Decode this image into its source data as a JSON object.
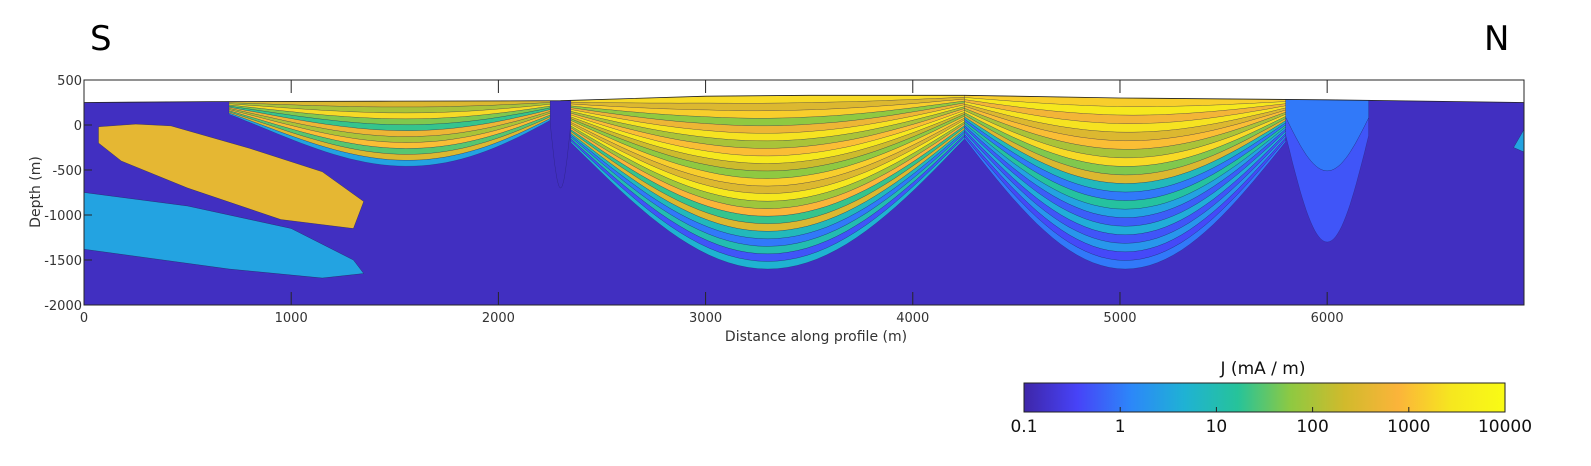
{
  "chart_data": {
    "type": "heatmap",
    "direction_labels": {
      "left": "S",
      "right": "N"
    },
    "xlabel": "Distance along profile (m)",
    "ylabel": "Depth (m)",
    "xlim": [
      0,
      6950
    ],
    "ylim": [
      -2000,
      500
    ],
    "x_ticks": [
      0,
      1000,
      2000,
      3000,
      4000,
      5000,
      6000
    ],
    "x_tick_labels": [
      "0",
      "1000",
      "2000",
      "3000",
      "4000",
      "5000",
      "6000"
    ],
    "y_ticks": [
      500,
      0,
      -500,
      -1000,
      -1500,
      -2000
    ],
    "y_tick_labels": [
      "500",
      "0",
      "-500",
      "-1000",
      "-1500",
      "-2000"
    ],
    "colorbar": {
      "title": "J (mA / m)",
      "scale": "log",
      "range": [
        0.1,
        10000
      ],
      "ticks": [
        0.1,
        1,
        10,
        100,
        1000,
        10000
      ],
      "tick_labels": [
        "0.1",
        "1",
        "10",
        "100",
        "1000",
        "10000"
      ],
      "colormap": [
        "#3e26a8",
        "#4743f8",
        "#2c87f9",
        "#1fb2d4",
        "#26c39a",
        "#8fc941",
        "#d1ba2c",
        "#fbb43a",
        "#f6e71f",
        "#f9fb15"
      ]
    },
    "surface_elevation": [
      [
        0,
        250
      ],
      [
        600,
        260
      ],
      [
        1500,
        265
      ],
      [
        2300,
        270
      ],
      [
        3000,
        320
      ],
      [
        3500,
        330
      ],
      [
        4250,
        330
      ],
      [
        5000,
        300
      ],
      [
        6000,
        280
      ],
      [
        6950,
        250
      ]
    ],
    "background_value": 0.15,
    "bodies": [
      {
        "name": "",
        "value": 400,
        "outline": [
          [
            70,
            -20
          ],
          [
            250,
            10
          ],
          [
            420,
            -10
          ],
          [
            800,
            -260
          ],
          [
            1150,
            -520
          ],
          [
            1350,
            -850
          ],
          [
            1300,
            -1150
          ],
          [
            950,
            -1050
          ],
          [
            500,
            -700
          ],
          [
            180,
            -400
          ],
          [
            70,
            -200
          ]
        ]
      },
      {
        "name": "",
        "value": 3,
        "outline": [
          [
            0,
            -750
          ],
          [
            500,
            -900
          ],
          [
            1000,
            -1150
          ],
          [
            1300,
            -1500
          ],
          [
            1350,
            -1650
          ],
          [
            1150,
            -1700
          ],
          [
            700,
            -1600
          ],
          [
            0,
            -1380
          ]
        ]
      },
      {
        "name": "",
        "value": 3,
        "outline": [
          [
            6900,
            -250
          ],
          [
            6950,
            -300
          ],
          [
            6950,
            -50
          ]
        ]
      }
    ],
    "layered_zones": [
      {
        "name": "",
        "x_range": [
          700,
          2250
        ],
        "top_depth": 250,
        "bottom_depth": [
          -300,
          -600
        ],
        "layer_values": [
          300,
          100,
          2000,
          50,
          20,
          500,
          100,
          1000,
          30,
          300,
          3
        ]
      },
      {
        "name": "",
        "x_range": [
          2250,
          2350
        ],
        "top_depth": 260,
        "bottom_depth": [
          -700,
          -700
        ],
        "layer_values": [
          0.15
        ]
      },
      {
        "name": "",
        "x_range": [
          2350,
          4250
        ],
        "top_depth": 300,
        "bottom_depth": [
          -1600,
          -1600
        ],
        "layer_values": [
          2000,
          300,
          1500,
          60,
          500,
          2500,
          100,
          1000,
          3000,
          200,
          60,
          1500,
          300,
          3000,
          80,
          800,
          20,
          300,
          8,
          1,
          10,
          0.5,
          5
        ]
      },
      {
        "name": "",
        "x_range": [
          4250,
          5800
        ],
        "top_depth": 330,
        "bottom_depth": [
          -1600,
          -1600
        ],
        "layer_values": [
          1500,
          3000,
          600,
          2500,
          300,
          1000,
          100,
          2000,
          50,
          300,
          8,
          1,
          15,
          3,
          0.6,
          4,
          0.5,
          2,
          0.4,
          1
        ]
      },
      {
        "name": "",
        "x_range": [
          5800,
          6200
        ],
        "top_depth": 280,
        "bottom_depth": [
          -1300,
          -1300
        ],
        "layer_values": [
          1,
          0.5
        ]
      }
    ]
  }
}
